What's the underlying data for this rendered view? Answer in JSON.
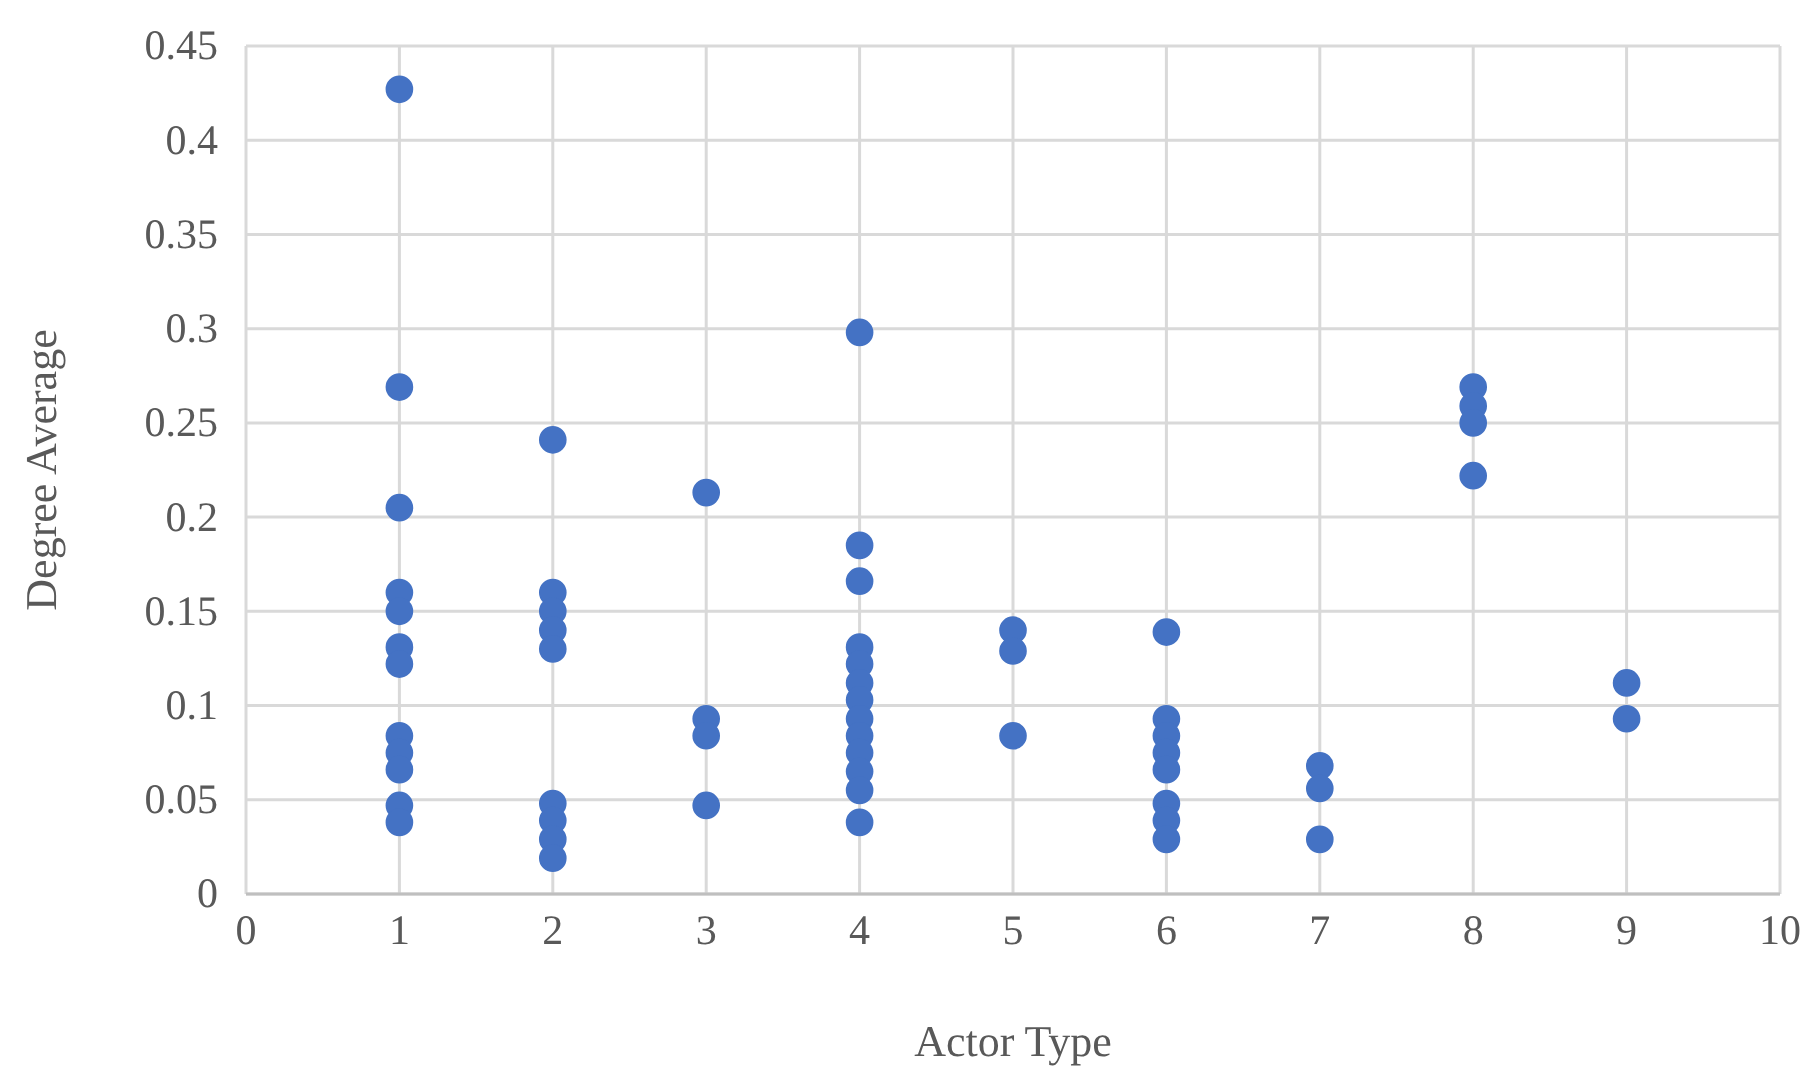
{
  "chart_data": {
    "type": "scatter",
    "xlabel": "Actor Type",
    "ylabel": "Degree Average",
    "xlim": [
      0,
      10
    ],
    "xticks": [
      0,
      1,
      2,
      3,
      4,
      5,
      6,
      7,
      8,
      9,
      10
    ],
    "ylim": [
      0,
      0.45
    ],
    "yticks": [
      0,
      0.05,
      0.1,
      0.15,
      0.2,
      0.25,
      0.3,
      0.35,
      0.4,
      0.45
    ],
    "grid": true,
    "marker": "circle",
    "series": [
      {
        "color": "#4472c4",
        "x": [
          1,
          1,
          1,
          1,
          1,
          1,
          1,
          1,
          1,
          1,
          1,
          1,
          2,
          2,
          2,
          2,
          2,
          2,
          2,
          2,
          2,
          3,
          3,
          3,
          3,
          4,
          4,
          4,
          4,
          4,
          4,
          4,
          4,
          4,
          4,
          4,
          4,
          4,
          5,
          5,
          5,
          6,
          6,
          6,
          6,
          6,
          6,
          6,
          6,
          7,
          7,
          7,
          8,
          8,
          8,
          8,
          9,
          9
        ],
        "values": [
          0.427,
          0.269,
          0.205,
          0.16,
          0.15,
          0.131,
          0.122,
          0.084,
          0.075,
          0.066,
          0.047,
          0.038,
          0.241,
          0.16,
          0.15,
          0.14,
          0.13,
          0.048,
          0.039,
          0.029,
          0.019,
          0.213,
          0.093,
          0.084,
          0.047,
          0.298,
          0.185,
          0.166,
          0.131,
          0.122,
          0.112,
          0.103,
          0.093,
          0.084,
          0.075,
          0.065,
          0.055,
          0.038,
          0.14,
          0.129,
          0.084,
          0.139,
          0.093,
          0.084,
          0.075,
          0.066,
          0.048,
          0.039,
          0.029,
          0.068,
          0.056,
          0.029,
          0.269,
          0.259,
          0.25,
          0.222,
          0.112,
          0.093
        ]
      }
    ]
  }
}
